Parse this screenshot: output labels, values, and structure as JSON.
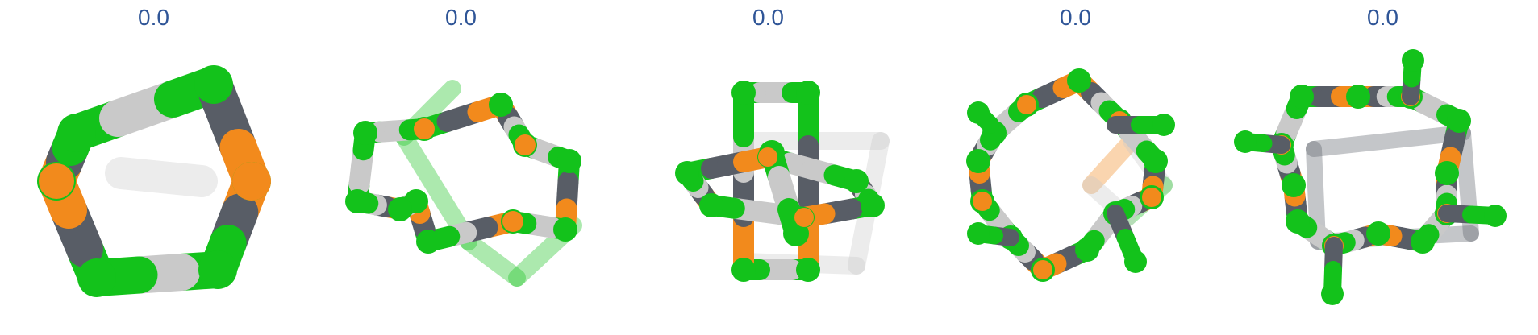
{
  "panels": [
    {
      "value_label": "0.0",
      "structure": "pentagon-ring"
    },
    {
      "value_label": "0.0",
      "structure": "twisted-octagon-ring"
    },
    {
      "value_label": "0.0",
      "structure": "interlocked-cage"
    },
    {
      "value_label": "0.0",
      "structure": "crown-ring"
    },
    {
      "value_label": "0.0",
      "structure": "square-ring-with-branches"
    }
  ],
  "colors": {
    "label": "#2f5597",
    "green": "#13c21b",
    "gray_dark": "#585d66",
    "gray_light": "#c9c9c9",
    "orange": "#f28a1c"
  }
}
